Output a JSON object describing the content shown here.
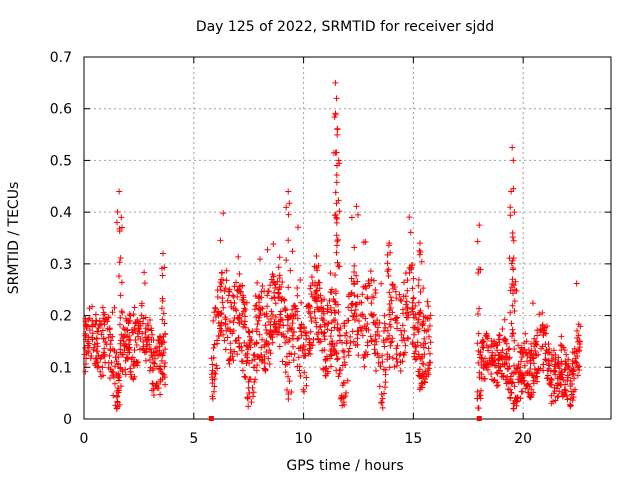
{
  "chart_data": {
    "type": "scatter",
    "title": "Day 125 of 2022, SRMTID for receiver sjdd",
    "xlabel": "GPS time / hours",
    "ylabel": "SRMTID / TECUs",
    "xlim": [
      0,
      24
    ],
    "ylim": [
      0,
      0.7
    ],
    "xticks": [
      0,
      5,
      10,
      15,
      20
    ],
    "yticks": [
      0,
      0.1,
      0.2,
      0.3,
      0.4,
      0.5,
      0.6,
      0.7
    ],
    "xtick_labels": [
      "0",
      "5",
      "10",
      "15",
      "20"
    ],
    "ytick_labels": [
      "0",
      "0.1",
      "0.2",
      "0.3",
      "0.4",
      "0.5",
      "0.6",
      "0.7"
    ],
    "grid": true,
    "marker": "+",
    "color": "#ff0000",
    "series": [
      {
        "name": "SRMTID",
        "segments": [
          {
            "x_range": [
              0.0,
              3.7
            ],
            "base": 0.13,
            "spread": 0.06,
            "peaks": [
              [
                1.6,
                0.44
              ],
              [
                1.7,
                0.39
              ],
              [
                3.6,
                0.32
              ]
            ]
          },
          {
            "x_range": [
              5.8,
              15.8
            ],
            "base": 0.17,
            "spread": 0.08,
            "peaks": [
              [
                9.3,
                0.44
              ],
              [
                11.45,
                0.65
              ],
              [
                11.5,
                0.62
              ],
              [
                11.55,
                0.56
              ],
              [
                11.6,
                0.5
              ],
              [
                13.9,
                0.34
              ],
              [
                15.3,
                0.34
              ]
            ]
          },
          {
            "x_range": [
              17.9,
              22.6
            ],
            "base": 0.1,
            "spread": 0.05,
            "peaks": [
              [
                18.0,
                0.375
              ],
              [
                19.5,
                0.525
              ],
              [
                19.55,
                0.5
              ],
              [
                19.45,
                0.44
              ],
              [
                19.6,
                0.4
              ]
            ]
          }
        ],
        "zero_markers_x": [
          5.8,
          18.0
        ]
      }
    ]
  }
}
